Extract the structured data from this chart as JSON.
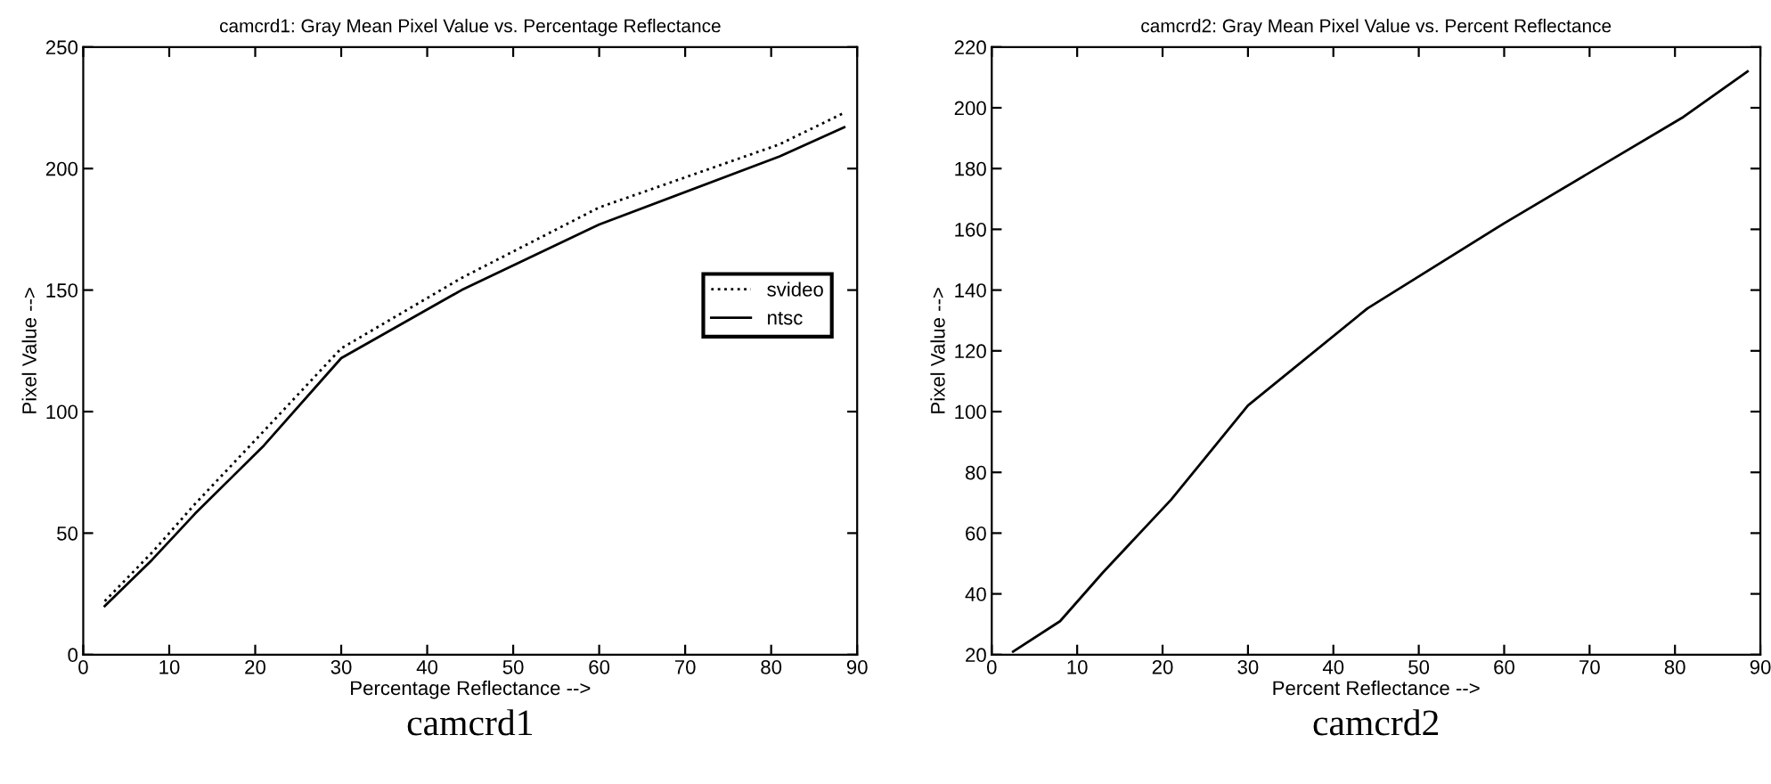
{
  "chart_data": [
    {
      "type": "line",
      "title": "camcrd1: Gray Mean Pixel Value vs. Percentage Reflectance",
      "xlabel": "Percentage Reflectance -->",
      "ylabel": "Pixel Value -->",
      "x": [
        2.5,
        8,
        13,
        21,
        30,
        44,
        60,
        81,
        88.5
      ],
      "series": [
        {
          "name": "svideo",
          "color": "#000000",
          "line_style": "dotted",
          "values": [
            22,
            42,
            62,
            92,
            126,
            155,
            184,
            210,
            223
          ]
        },
        {
          "name": "ntsc",
          "color": "#000000",
          "line_style": "solid",
          "values": [
            20,
            39,
            58,
            86,
            122,
            150,
            177,
            205,
            217
          ]
        }
      ],
      "xlim": [
        0,
        90
      ],
      "xticks": [
        0,
        10,
        20,
        30,
        40,
        50,
        60,
        70,
        80,
        90
      ],
      "ylim": [
        0,
        250
      ],
      "yticks": [
        0,
        50,
        100,
        150,
        200,
        250
      ],
      "legend": "right",
      "grid": false,
      "annotations": [
        "camcrd1"
      ]
    },
    {
      "type": "line",
      "title": "camcrd2: Gray Mean Pixel Value vs. Percent Reflectance",
      "xlabel": "Percent Reflectance -->",
      "ylabel": "Pixel Value -->",
      "x": [
        2.5,
        8,
        13,
        21,
        30,
        44,
        60,
        81,
        88.5
      ],
      "series": [
        {
          "color": "#000000",
          "line_style": "solid",
          "values": [
            21,
            31,
            47,
            71,
            102,
            134,
            162,
            197,
            212
          ]
        }
      ],
      "xlim": [
        0,
        90
      ],
      "xticks": [
        0,
        10,
        20,
        30,
        40,
        50,
        60,
        70,
        80,
        90
      ],
      "ylim": [
        20,
        220
      ],
      "yticks": [
        20,
        40,
        60,
        80,
        100,
        120,
        140,
        160,
        180,
        200,
        220
      ],
      "legend": false,
      "grid": false,
      "annotations": [
        "camcrd2"
      ]
    }
  ]
}
